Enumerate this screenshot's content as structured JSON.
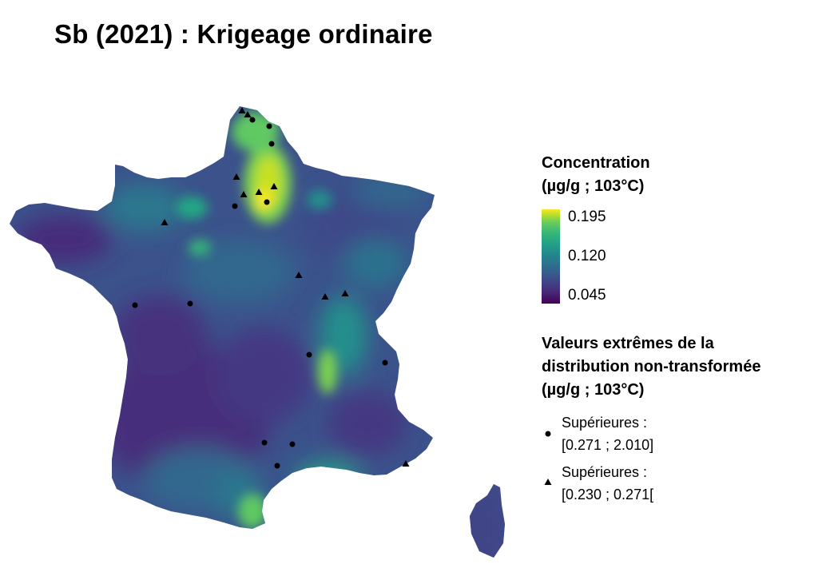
{
  "title": "Sb (2021) : Krigeage ordinaire",
  "legend_concentration": {
    "title_line1": "Concentration",
    "title_line2": "(µg/g ; 103°C)",
    "ticks": [
      "0.195",
      "0.120",
      "0.045"
    ],
    "max": 0.195,
    "mid": 0.12,
    "min": 0.045
  },
  "legend_extremes": {
    "title_line1": "Valeurs extrêmes de la",
    "title_line2": "distribution non-transformée",
    "title_line3": "(µg/g ; 103°C)",
    "items": [
      {
        "symbol": "circle",
        "line1": "Supérieures :",
        "line2": "[0.271 ; 2.010]"
      },
      {
        "symbol": "triangle",
        "line1": "Supérieures :",
        "line2": "[0.230 ; 0.271["
      }
    ]
  },
  "colors": {
    "low": "#440154",
    "mid": "#26828e",
    "high": "#fde725"
  }
}
